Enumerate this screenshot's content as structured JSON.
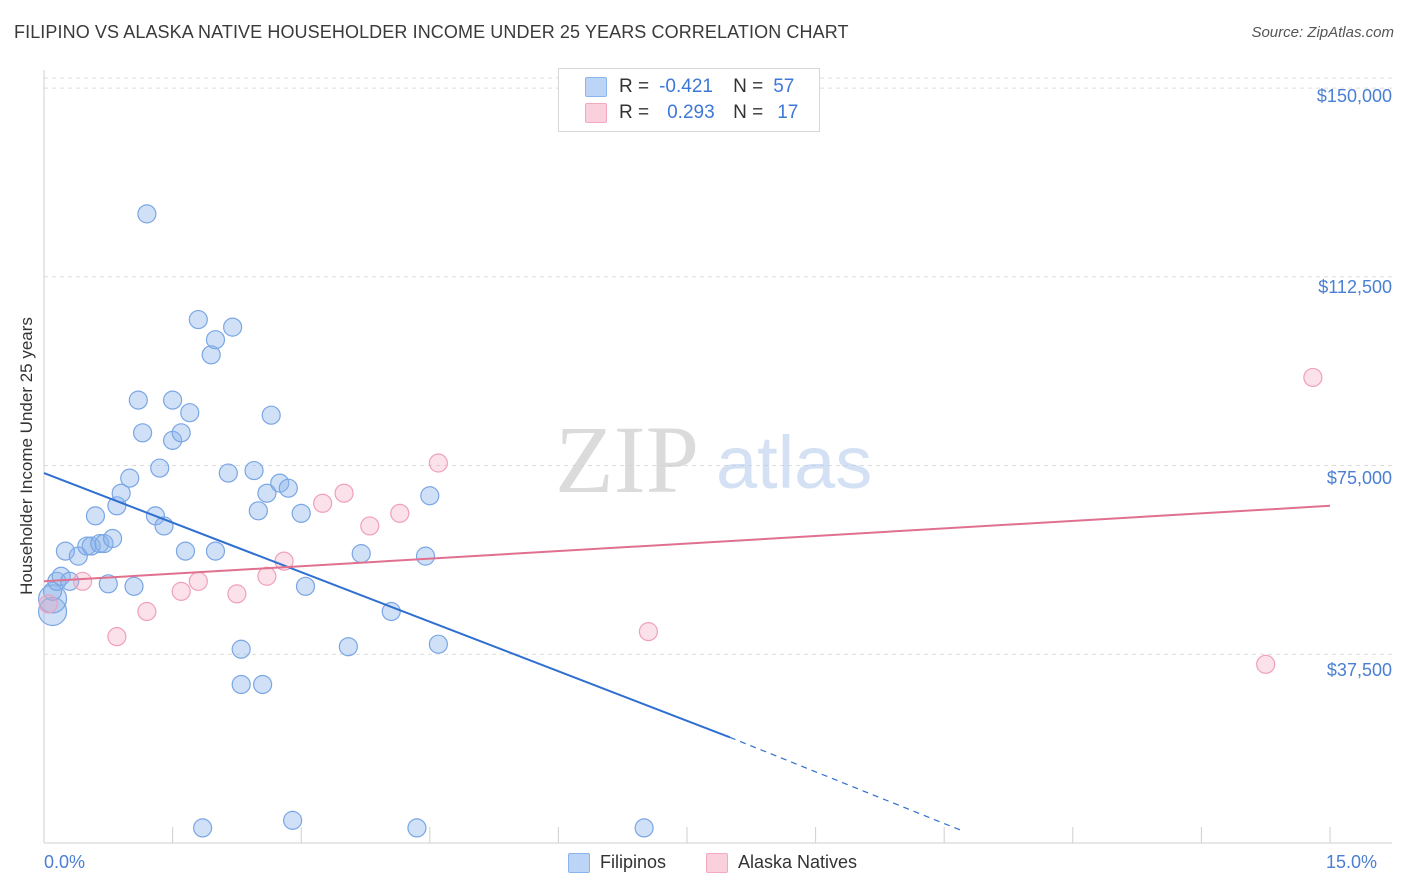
{
  "chart_data": {
    "type": "scatter",
    "title": "FILIPINO VS ALASKA NATIVE HOUSEHOLDER INCOME UNDER 25 YEARS CORRELATION CHART",
    "source": "Source: ZipAtlas.com",
    "xlabel": "",
    "ylabel": "Householder Income Under 25 years",
    "xlim": [
      0,
      15
    ],
    "ylim": [
      0,
      152000
    ],
    "x_tick_labels": [
      "0.0%",
      "15.0%"
    ],
    "y_ticks": [
      37500,
      75000,
      112500,
      150000
    ],
    "y_tick_labels": [
      "$37,500",
      "$75,000",
      "$112,500",
      "$150,000"
    ],
    "watermark": {
      "zip": "ZIP",
      "atlas": "atlas"
    },
    "legend": {
      "r_label": "R =",
      "n_label": "N =",
      "entries": [
        {
          "r": "-0.421",
          "n": "57"
        },
        {
          "r": "0.293",
          "n": "17"
        }
      ]
    },
    "series": [
      {
        "name": "Filipinos",
        "color": "#8ab4ec",
        "line_color": "#2f6fcf",
        "trend": {
          "x0": 0,
          "y0": 73500,
          "x1": 8.0,
          "y1": 21000,
          "dash_to_x": 10.7,
          "dash_to_y": 2500
        },
        "points": [
          [
            0.1,
            46000
          ],
          [
            0.1,
            48500
          ],
          [
            0.1,
            50000
          ],
          [
            0.15,
            52000
          ],
          [
            0.2,
            53000
          ],
          [
            0.25,
            58000
          ],
          [
            0.3,
            52000
          ],
          [
            0.4,
            57000
          ],
          [
            0.5,
            59000
          ],
          [
            0.55,
            59000
          ],
          [
            0.6,
            65000
          ],
          [
            0.65,
            59500
          ],
          [
            0.7,
            59500
          ],
          [
            0.75,
            51500
          ],
          [
            0.8,
            60500
          ],
          [
            0.85,
            67000
          ],
          [
            0.9,
            69500
          ],
          [
            1.0,
            72500
          ],
          [
            1.05,
            51000
          ],
          [
            1.1,
            88000
          ],
          [
            1.15,
            81500
          ],
          [
            1.2,
            125000
          ],
          [
            1.3,
            65000
          ],
          [
            1.35,
            74500
          ],
          [
            1.4,
            63000
          ],
          [
            1.5,
            80000
          ],
          [
            1.5,
            88000
          ],
          [
            1.6,
            81500
          ],
          [
            1.65,
            58000
          ],
          [
            1.7,
            85500
          ],
          [
            1.8,
            104000
          ],
          [
            1.95,
            97000
          ],
          [
            2.0,
            100000
          ],
          [
            2.0,
            58000
          ],
          [
            2.15,
            73500
          ],
          [
            2.2,
            102500
          ],
          [
            2.3,
            31500
          ],
          [
            2.3,
            38500
          ],
          [
            2.45,
            74000
          ],
          [
            2.5,
            66000
          ],
          [
            2.55,
            31500
          ],
          [
            2.6,
            69500
          ],
          [
            2.65,
            85000
          ],
          [
            2.75,
            71500
          ],
          [
            2.85,
            70500
          ],
          [
            3.0,
            65500
          ],
          [
            3.05,
            51000
          ],
          [
            3.55,
            39000
          ],
          [
            3.7,
            57500
          ],
          [
            4.05,
            46000
          ],
          [
            4.45,
            57000
          ],
          [
            4.5,
            69000
          ],
          [
            4.6,
            39500
          ],
          [
            1.85,
            3000
          ],
          [
            2.9,
            4500
          ],
          [
            4.35,
            3000
          ],
          [
            7.0,
            3000
          ]
        ]
      },
      {
        "name": "Alaska Natives",
        "color": "#f4a9c0",
        "line_color": "#e0708f",
        "trend": {
          "x0": 0,
          "y0": 52000,
          "x1": 15,
          "y1": 67000
        },
        "points": [
          [
            0.05,
            47500
          ],
          [
            0.45,
            52000
          ],
          [
            0.85,
            41000
          ],
          [
            1.2,
            46000
          ],
          [
            1.6,
            50000
          ],
          [
            1.8,
            52000
          ],
          [
            2.25,
            49500
          ],
          [
            2.6,
            53000
          ],
          [
            2.8,
            56000
          ],
          [
            3.25,
            67500
          ],
          [
            3.5,
            69500
          ],
          [
            3.8,
            63000
          ],
          [
            4.15,
            65500
          ],
          [
            4.6,
            75500
          ],
          [
            7.05,
            42000
          ],
          [
            14.25,
            35500
          ],
          [
            14.8,
            92500
          ]
        ]
      }
    ]
  }
}
